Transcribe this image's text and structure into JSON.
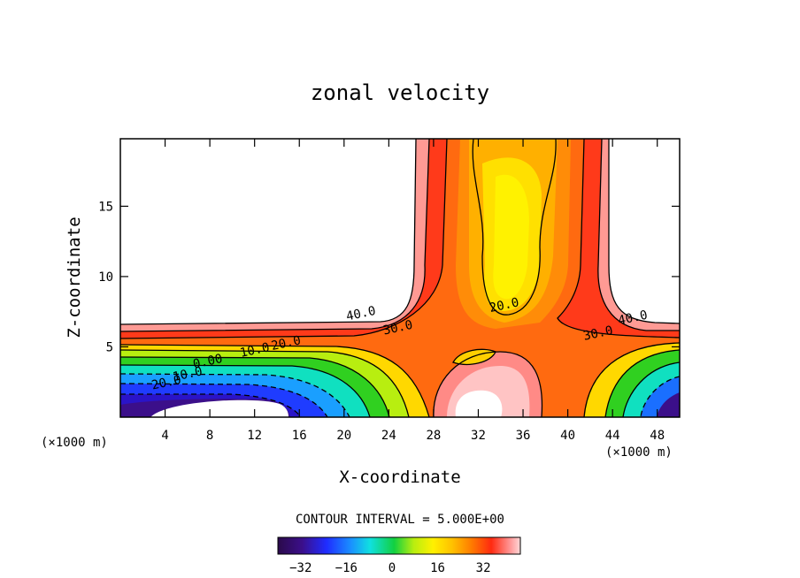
{
  "chart_data": {
    "type": "filled-contour",
    "title": "zonal velocity",
    "xlabel": "X-coordinate",
    "ylabel": "Z-coordinate",
    "x_unit": "(×1000 m)",
    "xlim": [
      0,
      50
    ],
    "ylim": [
      0,
      19.8
    ],
    "x_ticks": [
      4,
      8,
      12,
      16,
      20,
      24,
      28,
      32,
      36,
      40,
      44,
      48
    ],
    "y_ticks": [
      5,
      10,
      15
    ],
    "contour_interval_text": "CONTOUR INTERVAL = 5.000E+00",
    "contour_labels": [
      {
        "text": "40.0",
        "x": 21.5,
        "z": 7.4
      },
      {
        "text": "30.0",
        "x": 24.8,
        "z": 6.4
      },
      {
        "text": "20.0",
        "x": 14.8,
        "z": 5.3
      },
      {
        "text": "10.0",
        "x": 12.0,
        "z": 4.8
      },
      {
        "text": "0.00",
        "x": 7.8,
        "z": 4.0
      },
      {
        "text": "10.0",
        "x": 6.0,
        "z": 3.1
      },
      {
        "text": "20.0",
        "x": 4.1,
        "z": 2.5
      },
      {
        "text": "20.0",
        "x": 34.3,
        "z": 8.0
      },
      {
        "text": "30.0",
        "x": 42.7,
        "z": 6.0
      },
      {
        "text": "40.0",
        "x": 45.8,
        "z": 7.1
      }
    ],
    "colorbar": {
      "ticks": [
        -32,
        -16,
        0,
        16,
        32
      ],
      "vmin": -40,
      "vmax": 45
    }
  }
}
